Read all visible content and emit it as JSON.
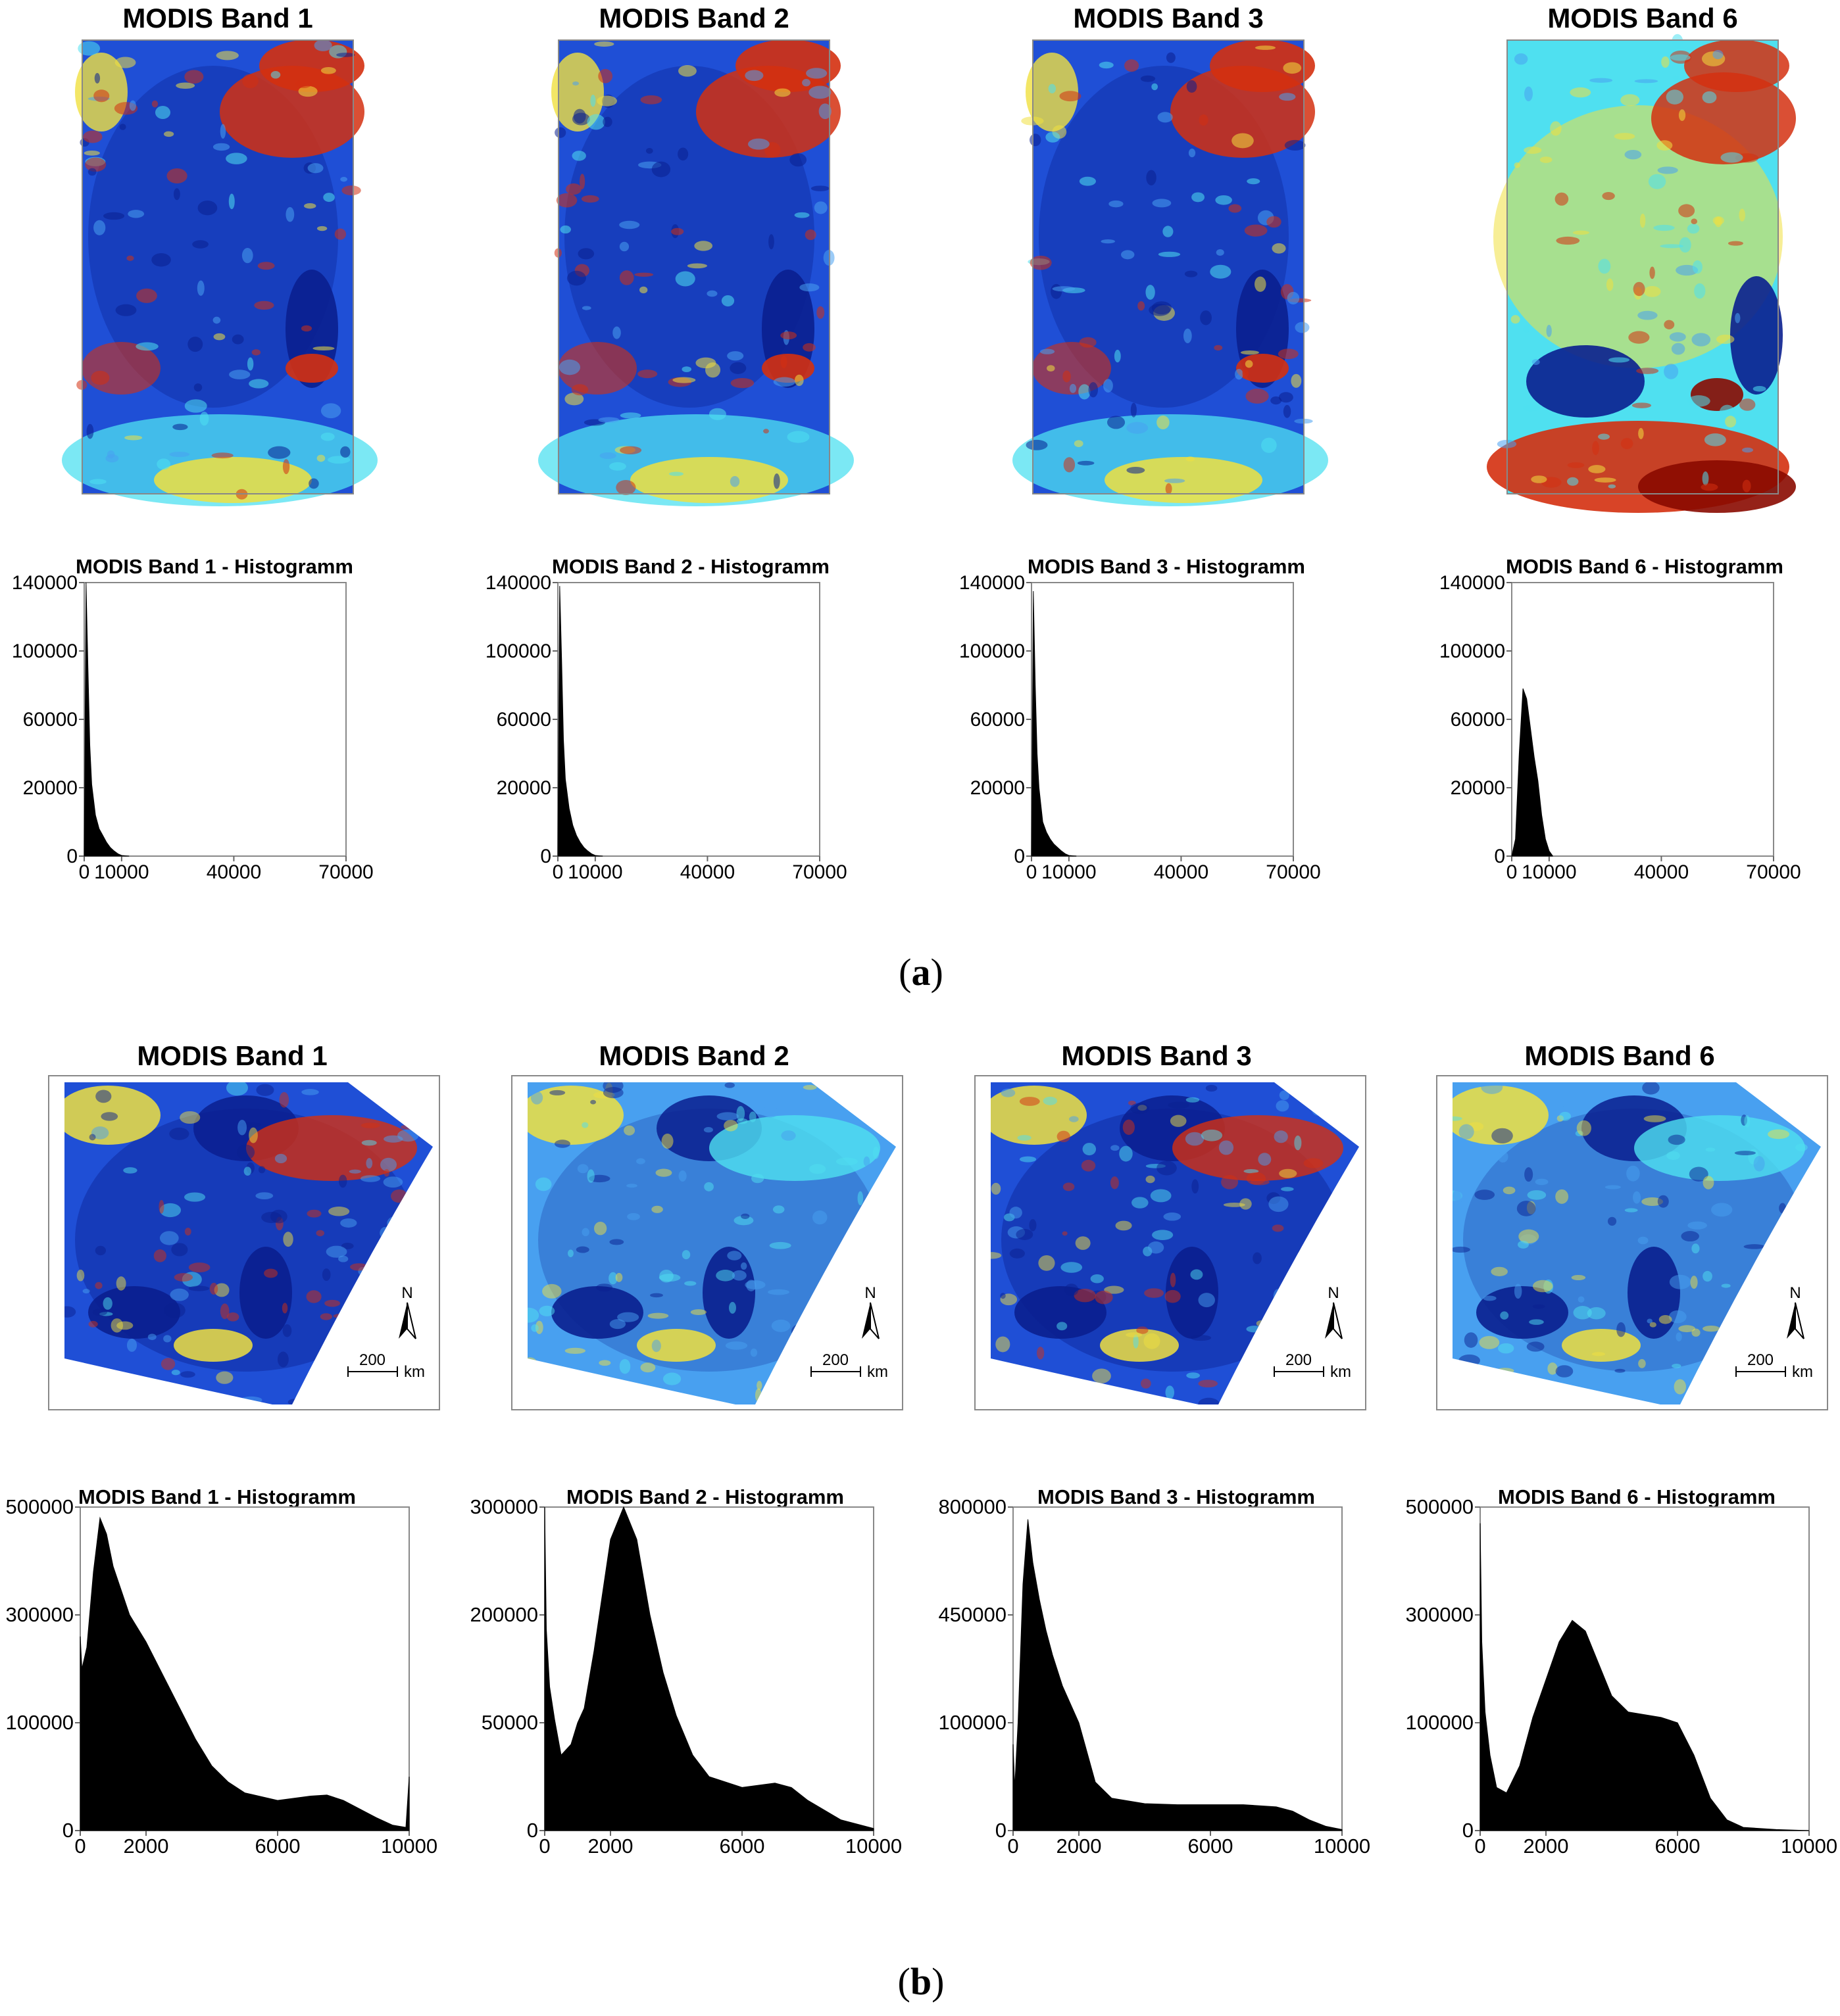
{
  "panel_labels": [
    {
      "open": "(",
      "letter": "a",
      "close": ")"
    },
    {
      "open": "(",
      "letter": "b",
      "close": ")"
    }
  ],
  "maps_a": [
    {
      "title": "MODIS Band 1",
      "variant": "blue"
    },
    {
      "title": "MODIS Band 2",
      "variant": "blue"
    },
    {
      "title": "MODIS Band 3",
      "variant": "blue"
    },
    {
      "title": "MODIS Band 6",
      "variant": "warm"
    }
  ],
  "maps_b": [
    {
      "title": "MODIS Band 1",
      "variant": "blue"
    },
    {
      "title": "MODIS Band 2",
      "variant": "light"
    },
    {
      "title": "MODIS Band 3",
      "variant": "blue"
    },
    {
      "title": "MODIS Band 6",
      "variant": "light"
    }
  ],
  "scalebar": {
    "value": "200",
    "unit": "km",
    "north": "N"
  },
  "colors": {
    "deep_blue": "#0a1f8f",
    "blue": "#1f4fd6",
    "light_blue": "#48a0f0",
    "cyan": "#4fe0f0",
    "yellow": "#f0e040",
    "red": "#d43010",
    "dark_red": "#8a0a00",
    "bar": "#000000"
  },
  "chart_data": [
    {
      "type": "bar",
      "title": "MODIS Band 1 - Histogramm",
      "yticks": [
        0,
        20000,
        60000,
        100000,
        140000
      ],
      "ylim": [
        0,
        140000
      ],
      "xticks": [
        0,
        10000,
        40000,
        70000
      ],
      "xlim": [
        0,
        70000
      ],
      "x": [
        0,
        500,
        1000,
        1500,
        2000,
        3000,
        4000,
        5000,
        6000,
        7000,
        8000,
        9000,
        10000,
        12000
      ],
      "values": [
        0,
        140000,
        90000,
        45000,
        22000,
        12000,
        8000,
        6000,
        4000,
        2500,
        1500,
        700,
        200,
        0
      ]
    },
    {
      "type": "bar",
      "title": "MODIS Band 2 - Histogramm",
      "yticks": [
        0,
        20000,
        60000,
        100000,
        140000
      ],
      "ylim": [
        0,
        140000
      ],
      "xticks": [
        0,
        10000,
        40000,
        70000
      ],
      "xlim": [
        0,
        70000
      ],
      "x": [
        0,
        500,
        1000,
        1500,
        2000,
        3000,
        4000,
        5000,
        6000,
        7000,
        8000,
        9000,
        10000,
        12000
      ],
      "values": [
        0,
        138000,
        95000,
        48000,
        25000,
        14000,
        9000,
        6000,
        4000,
        2500,
        1500,
        700,
        200,
        0
      ]
    },
    {
      "type": "bar",
      "title": "MODIS Band 3 - Histogramm",
      "yticks": [
        0,
        20000,
        60000,
        100000,
        140000
      ],
      "ylim": [
        0,
        140000
      ],
      "xticks": [
        0,
        10000,
        40000,
        70000
      ],
      "xlim": [
        0,
        70000
      ],
      "x": [
        0,
        500,
        1000,
        1500,
        2000,
        3000,
        4000,
        5000,
        6000,
        7000,
        8000,
        9000,
        10000,
        12000
      ],
      "values": [
        0,
        135000,
        80000,
        40000,
        20000,
        10000,
        7000,
        5000,
        3500,
        2500,
        1500,
        700,
        200,
        0
      ]
    },
    {
      "type": "bar",
      "title": "MODIS Band 6 - Histogramm",
      "yticks": [
        0,
        20000,
        60000,
        100000,
        140000
      ],
      "ylim": [
        0,
        140000
      ],
      "xticks": [
        0,
        10000,
        40000,
        70000
      ],
      "xlim": [
        0,
        70000
      ],
      "x": [
        0,
        1000,
        2000,
        3000,
        4000,
        5000,
        6000,
        7000,
        8000,
        9000,
        10000,
        11000
      ],
      "values": [
        0,
        5000,
        40000,
        78000,
        72000,
        55000,
        38000,
        24000,
        12000,
        5000,
        1500,
        0
      ]
    },
    {
      "type": "bar",
      "title": "MODIS Band 1 - Histogramm",
      "yticks": [
        0,
        100000,
        300000,
        500000
      ],
      "ylim": [
        0,
        500000
      ],
      "xticks": [
        0,
        2000,
        6000,
        10000
      ],
      "xlim": [
        0,
        10000
      ],
      "x": [
        0,
        50,
        200,
        400,
        600,
        800,
        1000,
        1500,
        2000,
        2500,
        3000,
        3500,
        4000,
        4500,
        5000,
        6000,
        7000,
        7500,
        8000,
        9000,
        9500,
        9900,
        10000
      ],
      "values": [
        260000,
        200000,
        240000,
        380000,
        480000,
        450000,
        390000,
        300000,
        250000,
        190000,
        130000,
        85000,
        60000,
        45000,
        35000,
        28000,
        32000,
        33000,
        28000,
        12000,
        5000,
        3000,
        50000
      ]
    },
    {
      "type": "bar",
      "title": "MODIS Band 2 - Histogramm",
      "yticks": [
        0,
        50000,
        200000,
        300000
      ],
      "ylim": [
        0,
        300000
      ],
      "xticks": [
        0,
        2000,
        6000,
        10000
      ],
      "xlim": [
        0,
        10000
      ],
      "x": [
        0,
        50,
        150,
        300,
        500,
        800,
        1000,
        1200,
        1500,
        2000,
        2400,
        2800,
        3200,
        3600,
        4000,
        4500,
        5000,
        6000,
        7000,
        7500,
        8000,
        9000,
        10000
      ],
      "values": [
        300000,
        180000,
        100000,
        55000,
        35000,
        40000,
        50000,
        70000,
        150000,
        270000,
        300000,
        270000,
        200000,
        120000,
        60000,
        35000,
        25000,
        20000,
        22000,
        20000,
        14000,
        5000,
        1000
      ]
    },
    {
      "type": "bar",
      "title": "MODIS Band 3 - Histogramm",
      "yticks": [
        0,
        100000,
        450000,
        800000
      ],
      "ylim": [
        0,
        800000
      ],
      "xticks": [
        0,
        2000,
        6000,
        10000
      ],
      "xlim": [
        0,
        10000
      ],
      "x": [
        0,
        50,
        150,
        300,
        450,
        600,
        800,
        1000,
        1200,
        1500,
        2000,
        2500,
        3000,
        4000,
        5000,
        6000,
        7000,
        8000,
        8500,
        9000,
        9500,
        10000
      ],
      "values": [
        80000,
        40000,
        100000,
        550000,
        760000,
        620000,
        500000,
        400000,
        320000,
        220000,
        100000,
        45000,
        30000,
        25000,
        24000,
        24000,
        24000,
        22000,
        18000,
        10000,
        4000,
        1000
      ]
    },
    {
      "type": "bar",
      "title": "MODIS Band 6 - Histogramm",
      "yticks": [
        0,
        100000,
        300000,
        500000
      ],
      "ylim": [
        0,
        500000
      ],
      "xticks": [
        0,
        2000,
        6000,
        10000
      ],
      "xlim": [
        0,
        10000
      ],
      "x": [
        0,
        50,
        150,
        300,
        500,
        800,
        1200,
        1600,
        2000,
        2400,
        2800,
        3200,
        3600,
        4000,
        4500,
        5000,
        5500,
        6000,
        6500,
        7000,
        7500,
        8000,
        9000,
        10000
      ],
      "values": [
        470000,
        250000,
        120000,
        70000,
        40000,
        35000,
        60000,
        110000,
        180000,
        250000,
        290000,
        270000,
        210000,
        150000,
        120000,
        115000,
        110000,
        100000,
        70000,
        30000,
        10000,
        3000,
        1000,
        0
      ]
    }
  ]
}
